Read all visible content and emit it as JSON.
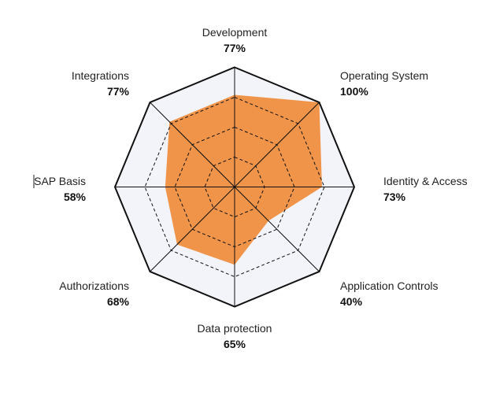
{
  "chart_data": {
    "type": "radar",
    "categories": [
      "Development",
      "Operating System",
      "Identity & Access",
      "Application Controls",
      "Data protection",
      "Authorizations",
      "SAP Basis",
      "Integrations"
    ],
    "values": [
      77,
      100,
      73,
      40,
      65,
      68,
      58,
      77
    ],
    "value_labels": [
      "77%",
      "100%",
      "73%",
      "40%",
      "65%",
      "68%",
      "58%",
      "77%"
    ],
    "range": [
      0,
      100
    ],
    "grid_levels": [
      25,
      50,
      75,
      100
    ],
    "grid": true,
    "colors": {
      "fill": "#F0944A",
      "grid_background": "#F3F4FA",
      "grid_line": "#111111"
    }
  }
}
